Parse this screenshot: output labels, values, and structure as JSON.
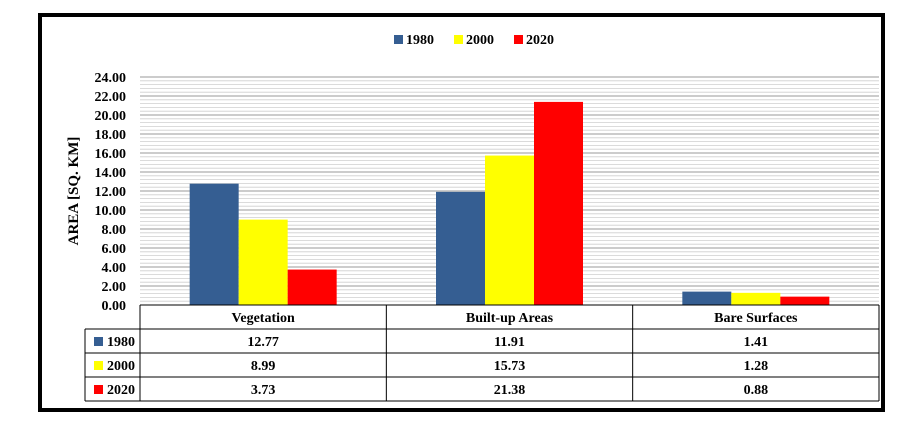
{
  "chart_data": {
    "type": "bar",
    "title": "",
    "xlabel": "",
    "ylabel": "AREA [SQ. KM]",
    "ylim": [
      0,
      24
    ],
    "y_tick_step": 2,
    "y_tick_labels": [
      "0.00",
      "2.00",
      "4.00",
      "6.00",
      "8.00",
      "10.00",
      "12.00",
      "14.00",
      "16.00",
      "18.00",
      "20.00",
      "22.00",
      "24.00"
    ],
    "grid": true,
    "legend_position": "top-center",
    "categories": [
      "Vegetation",
      "Built-up Areas",
      "Bare Surfaces"
    ],
    "series": [
      {
        "name": "1980",
        "color": "#355E92",
        "values": [
          12.77,
          11.91,
          1.41
        ],
        "labels": [
          "12.77",
          "11.91",
          "1.41"
        ]
      },
      {
        "name": "2000",
        "color": "#FFFF00",
        "values": [
          8.99,
          15.73,
          1.28
        ],
        "labels": [
          "8.99",
          "15.73",
          "1.28"
        ]
      },
      {
        "name": "2020",
        "color": "#FF0000",
        "values": [
          3.73,
          21.38,
          0.88
        ],
        "labels": [
          "3.73",
          "21.38",
          "0.88"
        ]
      }
    ],
    "data_table": true
  }
}
